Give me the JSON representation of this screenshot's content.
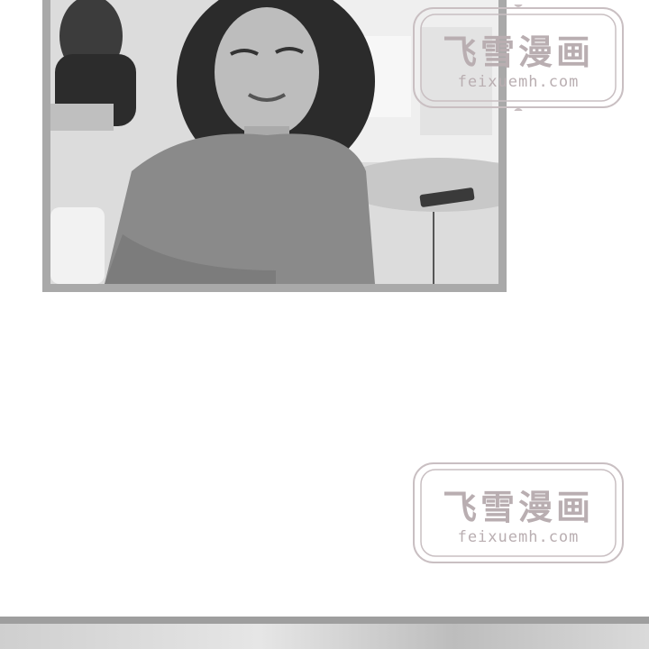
{
  "watermark": {
    "chinese_text": "飞雪漫画",
    "url_text": "feixuemh.com",
    "color": "#b9aeb1"
  },
  "panel": {
    "border_color": "#a9a9a9",
    "description_icon": "photo-woman-cafe"
  }
}
